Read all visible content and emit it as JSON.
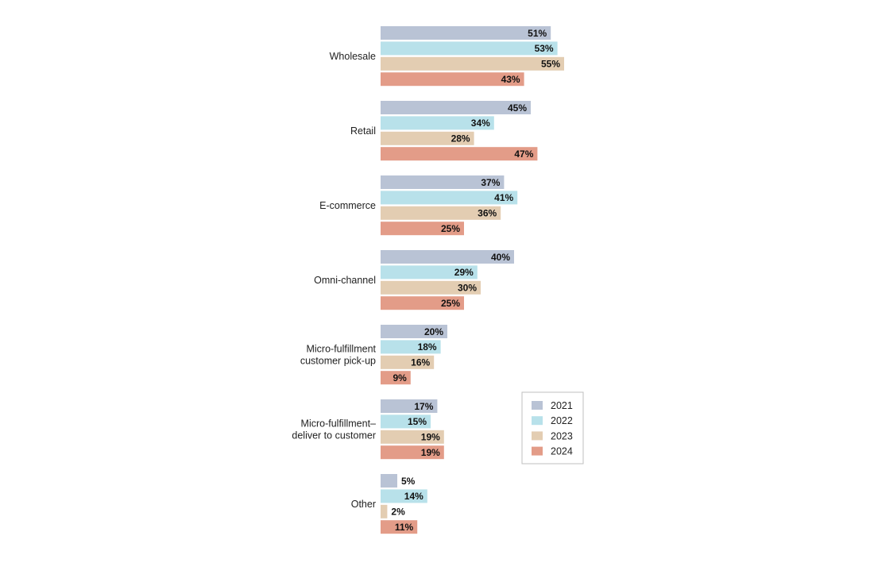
{
  "chart_data": {
    "type": "bar",
    "orientation": "horizontal",
    "categories": [
      "Wholesale",
      "Retail",
      "E-commerce",
      "Omni-channel",
      "Micro-fulfillment customer pick-up",
      "Micro-fulfillment– deliver to customer",
      "Other"
    ],
    "category_lines": [
      [
        "Wholesale"
      ],
      [
        "Retail"
      ],
      [
        "E-commerce"
      ],
      [
        "Omni-channel"
      ],
      [
        "Micro-fulfillment",
        "customer pick-up"
      ],
      [
        "Micro-fulfillment–",
        "deliver to customer"
      ],
      [
        "Other"
      ]
    ],
    "series": [
      {
        "name": "2021",
        "color": "#b9c3d5",
        "values": [
          51,
          45,
          37,
          40,
          20,
          17,
          5
        ]
      },
      {
        "name": "2022",
        "color": "#b8e1ea",
        "values": [
          53,
          34,
          41,
          29,
          18,
          15,
          14
        ]
      },
      {
        "name": "2023",
        "color": "#e3cdb2",
        "values": [
          55,
          28,
          36,
          30,
          16,
          19,
          2
        ]
      },
      {
        "name": "2024",
        "color": "#e39c88",
        "values": [
          43,
          47,
          25,
          25,
          9,
          19,
          11
        ]
      }
    ],
    "value_suffix": "%",
    "title": "",
    "xlabel": "",
    "ylabel": "",
    "grid": false,
    "legend_position": "right"
  }
}
